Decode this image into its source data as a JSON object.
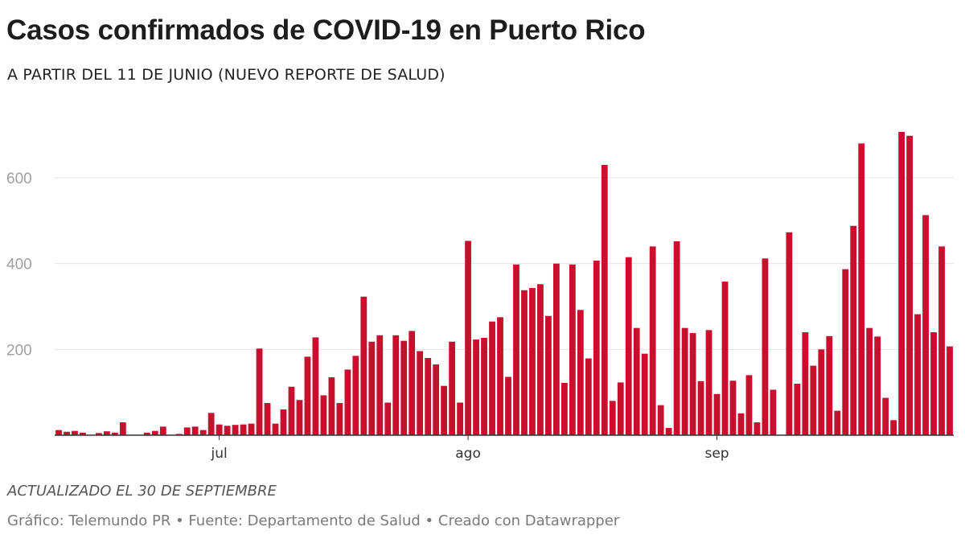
{
  "header": {
    "title": "Casos confirmados de COVID-19 en Puerto Rico",
    "subtitle": "A PARTIR DEL 11 DE JUNIO (NUEVO REPORTE DE SALUD)"
  },
  "footer": {
    "updated": "ACTUALIZADO EL 30 DE SEPTIEMBRE",
    "credits": "Gráfico: Telemundo PR • Fuente: Departamento de Salud • Creado con Datawrapper"
  },
  "colors": {
    "bar": "#c8102e",
    "grid": "#e3e3e3",
    "axis": "#333333"
  },
  "chart_data": {
    "type": "bar",
    "title": "Casos confirmados de COVID-19 en Puerto Rico",
    "subtitle": "A PARTIR DEL 11 DE JUNIO (NUEVO REPORTE DE SALUD)",
    "xlabel": "",
    "ylabel": "",
    "ylim": [
      0,
      720
    ],
    "y_ticks": [
      200,
      400,
      600
    ],
    "y_tick_labels": [
      "200",
      "400",
      "600"
    ],
    "grid": true,
    "x_range": [
      "2020-06-11",
      "2020-09-30"
    ],
    "x_ticks": [
      {
        "label": "jul",
        "index": 20
      },
      {
        "label": "ago",
        "index": 51
      },
      {
        "label": "sep",
        "index": 82
      }
    ],
    "series": [
      {
        "name": "Casos confirmados",
        "values": [
          12,
          8,
          10,
          6,
          0,
          5,
          9,
          6,
          30,
          0,
          0,
          6,
          10,
          20,
          0,
          3,
          18,
          20,
          12,
          52,
          25,
          22,
          24,
          25,
          27,
          202,
          75,
          27,
          60,
          113,
          82,
          183,
          228,
          93,
          135,
          75,
          153,
          185,
          323,
          218,
          233,
          76,
          233,
          220,
          243,
          196,
          180,
          165,
          115,
          218,
          76,
          453,
          223,
          227,
          265,
          275,
          136,
          398,
          338,
          343,
          352,
          278,
          400,
          122,
          398,
          292,
          179,
          407,
          630,
          80,
          123,
          415,
          250,
          190,
          440,
          70,
          17,
          452,
          250,
          238,
          126,
          245,
          96,
          358,
          127,
          51,
          140,
          30,
          412,
          106,
          0,
          473,
          120,
          240,
          162,
          200,
          231,
          57,
          387,
          488,
          680,
          250,
          230,
          87,
          35,
          707,
          698,
          282,
          513,
          240,
          440,
          207
        ]
      }
    ]
  }
}
